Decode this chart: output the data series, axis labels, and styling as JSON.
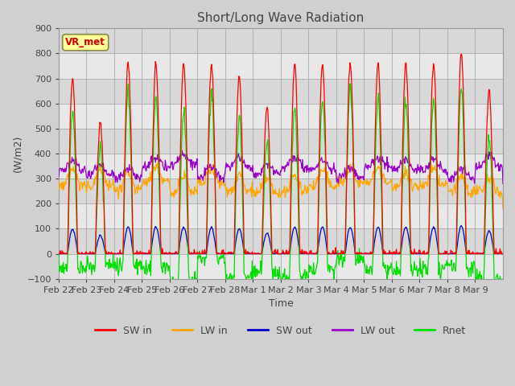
{
  "title": "Short/Long Wave Radiation",
  "xlabel": "Time",
  "ylabel": "(W/m2)",
  "ylim": [
    -100,
    900
  ],
  "yticks": [
    -100,
    0,
    100,
    200,
    300,
    400,
    500,
    600,
    700,
    800,
    900
  ],
  "xlabels": [
    "Feb 22",
    "Feb 23",
    "Feb 24",
    "Feb 25",
    "Feb 26",
    "Feb 27",
    "Feb 28",
    "Mar 1",
    "Mar 2",
    "Mar 3",
    "Mar 4",
    "Mar 5",
    "Mar 6",
    "Mar 7",
    "Mar 8",
    "Mar 9"
  ],
  "legend": [
    {
      "label": "SW in",
      "color": "#ff0000"
    },
    {
      "label": "LW in",
      "color": "#ffa500"
    },
    {
      "label": "SW out",
      "color": "#0000cc"
    },
    {
      "label": "LW out",
      "color": "#9900cc"
    },
    {
      "label": "Rnet",
      "color": "#00dd00"
    }
  ],
  "annotation_text": "VR_met",
  "annotation_color": "#cc0000",
  "annotation_bgcolor": "#ffff99",
  "band_colors": [
    "#e8e8e8",
    "#d8d8d8"
  ],
  "grid_color": "#cccccc",
  "fig_facecolor": "#d0d0d0",
  "n_days": 16,
  "seed": 42
}
